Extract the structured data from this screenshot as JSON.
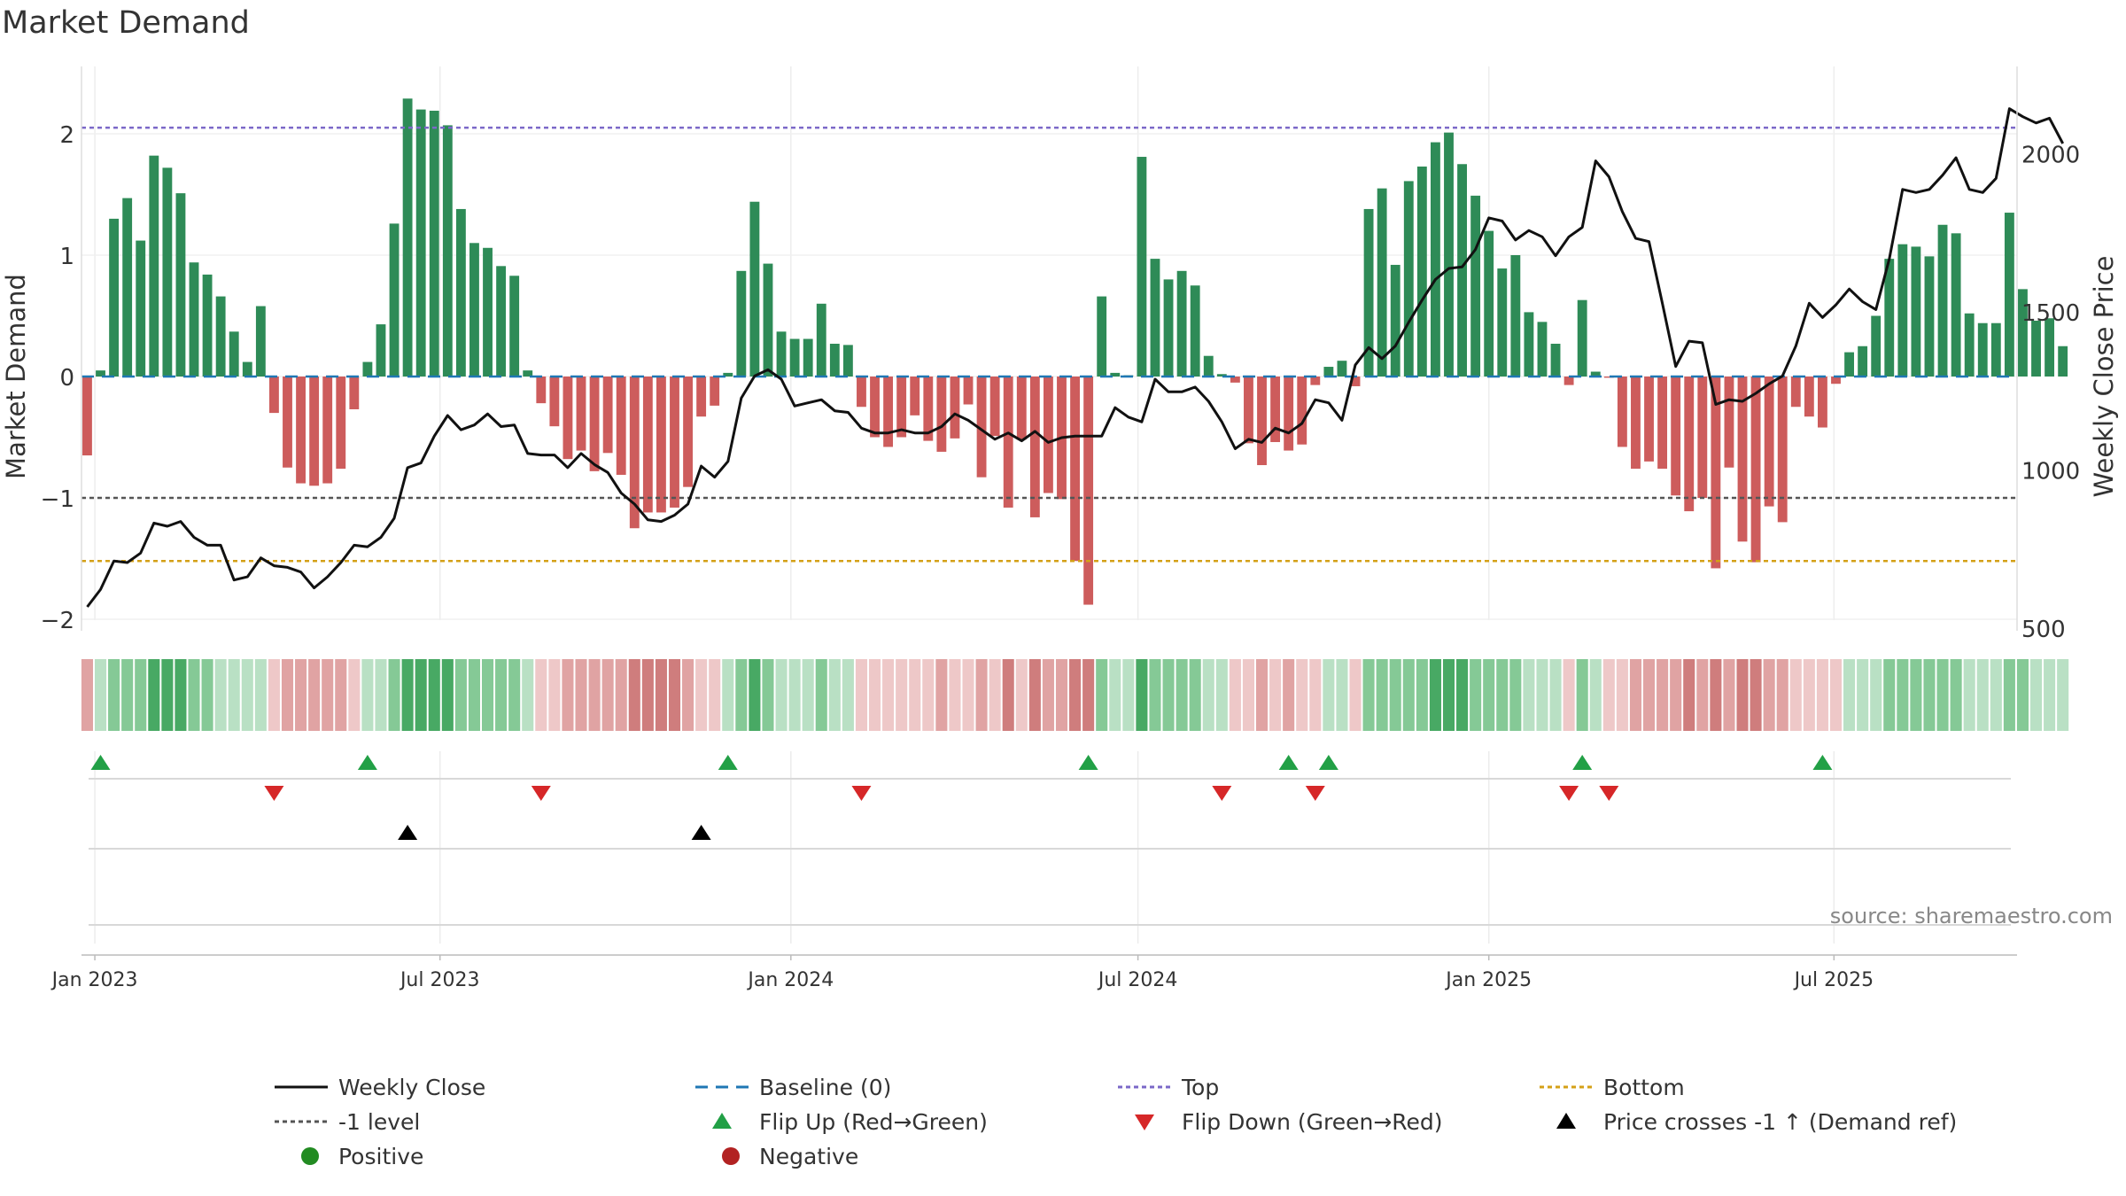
{
  "title": "Market Demand",
  "source": "source: sharemaestro.com",
  "colors": {
    "positive": "#2e8b57",
    "negative": "#cd5c5c",
    "price": "#111111",
    "baseline": "#1f77b4",
    "top": "#7b68c8",
    "minus1": "#555555",
    "bottom": "#d4a017",
    "flip_up": "#22a046",
    "flip_down": "#d62728",
    "price_cross": "#000000"
  },
  "chart_data": {
    "type": "bar",
    "x_start": "2022-12-25",
    "x_end": "2025-10-05",
    "x_ticks": [
      {
        "date": "2023-01-01",
        "label": "Jan 2023"
      },
      {
        "date": "2023-07-01",
        "label": "Jul 2023"
      },
      {
        "date": "2024-01-01",
        "label": "Jan 2024"
      },
      {
        "date": "2024-07-01",
        "label": "Jul 2024"
      },
      {
        "date": "2025-01-01",
        "label": "Jan 2025"
      },
      {
        "date": "2025-07-01",
        "label": "Jul 2025"
      }
    ],
    "ylabel": "Market Demand",
    "ylim": [
      -2.2,
      2.5
    ],
    "y_ticks": [
      {
        "v": 2,
        "label": "2"
      },
      {
        "v": 1,
        "label": "1"
      },
      {
        "v": 0,
        "label": "0"
      },
      {
        "v": -1,
        "label": "−1"
      },
      {
        "v": -2,
        "label": "−2"
      }
    ],
    "y2label": "Weekly Close Price",
    "y2lim": [
      500,
      2200
    ],
    "y2_ticks": [
      {
        "v": 500,
        "label": "500"
      },
      {
        "v": 1000,
        "label": "1000"
      },
      {
        "v": 1500,
        "label": "1500"
      },
      {
        "v": 2000,
        "label": "2000"
      }
    ],
    "reference_lines": {
      "top": 2.05,
      "minus1": -1.0,
      "bottom": -1.52,
      "baseline": 0
    },
    "demand": [
      -0.65,
      0.05,
      1.3,
      1.47,
      1.12,
      1.82,
      1.72,
      1.51,
      0.94,
      0.84,
      0.66,
      0.37,
      0.12,
      0.58,
      -0.3,
      -0.75,
      -0.88,
      -0.9,
      -0.88,
      -0.76,
      -0.27,
      0.12,
      0.43,
      1.26,
      2.29,
      2.2,
      2.19,
      2.07,
      1.38,
      1.1,
      1.06,
      0.91,
      0.83,
      0.05,
      -0.22,
      -0.41,
      -0.68,
      -0.61,
      -0.78,
      -0.63,
      -0.81,
      -1.25,
      -1.12,
      -1.12,
      -1.08,
      -0.91,
      -0.33,
      -0.24,
      0.03,
      0.87,
      1.44,
      0.93,
      0.37,
      0.31,
      0.31,
      0.6,
      0.27,
      0.26,
      -0.25,
      -0.5,
      -0.58,
      -0.5,
      -0.32,
      -0.53,
      -0.62,
      -0.51,
      -0.23,
      -0.83,
      -0.49,
      -1.08,
      -0.52,
      -1.16,
      -0.96,
      -1.01,
      -1.52,
      -1.88,
      0.66,
      0.03,
      0.01,
      1.81,
      0.97,
      0.8,
      0.87,
      0.75,
      0.17,
      0.02,
      -0.05,
      -0.55,
      -0.73,
      -0.54,
      -0.61,
      -0.56,
      -0.07,
      0.08,
      0.13,
      -0.08,
      1.38,
      1.55,
      0.92,
      1.61,
      1.73,
      1.93,
      2.01,
      1.75,
      1.49,
      1.2,
      0.89,
      1.0,
      0.53,
      0.45,
      0.27,
      -0.07,
      0.63,
      0.04,
      -0.01,
      -0.58,
      -0.76,
      -0.7,
      -0.76,
      -0.98,
      -1.11,
      -1.0,
      -1.58,
      -0.75,
      -1.36,
      -1.53,
      -1.07,
      -1.2,
      -0.25,
      -0.33,
      -0.42,
      -0.06,
      0.2,
      0.25,
      0.5,
      0.97,
      1.09,
      1.07,
      0.99,
      1.25,
      1.18,
      0.52,
      0.44,
      0.44,
      1.35,
      0.72,
      0.46,
      0.48,
      0.25
    ],
    "price": [
      570,
      625,
      715,
      710,
      740,
      835,
      825,
      840,
      790,
      765,
      765,
      655,
      665,
      725,
      700,
      695,
      680,
      630,
      665,
      710,
      765,
      760,
      790,
      850,
      1010,
      1025,
      1110,
      1175,
      1130,
      1145,
      1180,
      1140,
      1145,
      1055,
      1050,
      1050,
      1010,
      1055,
      1020,
      995,
      930,
      895,
      845,
      840,
      860,
      895,
      1015,
      980,
      1030,
      1230,
      1300,
      1320,
      1290,
      1205,
      1215,
      1225,
      1190,
      1185,
      1135,
      1120,
      1120,
      1130,
      1120,
      1120,
      1140,
      1180,
      1160,
      1130,
      1100,
      1120,
      1095,
      1125,
      1090,
      1105,
      1110,
      1110,
      1110,
      1200,
      1170,
      1155,
      1290,
      1250,
      1250,
      1265,
      1220,
      1155,
      1070,
      1100,
      1090,
      1135,
      1120,
      1150,
      1225,
      1215,
      1160,
      1335,
      1390,
      1355,
      1395,
      1470,
      1540,
      1605,
      1640,
      1645,
      1700,
      1800,
      1790,
      1730,
      1760,
      1740,
      1680,
      1740,
      1770,
      1980,
      1930,
      1820,
      1735,
      1725,
      1530,
      1330,
      1410,
      1405,
      1210,
      1225,
      1220,
      1245,
      1275,
      1300,
      1395,
      1530,
      1485,
      1525,
      1575,
      1535,
      1510,
      1670,
      1890,
      1880,
      1890,
      1935,
      1990,
      1890,
      1880,
      1925,
      2145,
      2120,
      2100,
      2115,
      2035
    ],
    "band_levels": [
      -2,
      1,
      2,
      2,
      2,
      3,
      3,
      3,
      2,
      2,
      1,
      1,
      1,
      1,
      -1,
      -2,
      -2,
      -2,
      -2,
      -2,
      -1,
      1,
      1,
      2,
      3,
      3,
      3,
      3,
      2,
      2,
      2,
      2,
      2,
      1,
      -1,
      -1,
      -2,
      -2,
      -2,
      -2,
      -2,
      -3,
      -3,
      -3,
      -3,
      -2,
      -1,
      -1,
      1,
      2,
      3,
      2,
      1,
      1,
      1,
      2,
      1,
      1,
      -1,
      -1,
      -1,
      -1,
      -1,
      -1,
      -2,
      -1,
      -1,
      -2,
      -1,
      -3,
      -1,
      -3,
      -2,
      -2,
      -3,
      -3,
      2,
      1,
      1,
      3,
      2,
      2,
      2,
      2,
      1,
      1,
      -1,
      -1,
      -2,
      -1,
      -2,
      -1,
      -1,
      1,
      1,
      -1,
      2,
      2,
      2,
      2,
      2,
      3,
      3,
      3,
      2,
      2,
      2,
      2,
      1,
      1,
      1,
      -1,
      2,
      1,
      -1,
      -1,
      -2,
      -2,
      -2,
      -2,
      -3,
      -2,
      -3,
      -2,
      -3,
      -3,
      -2,
      -2,
      -1,
      -1,
      -1,
      -1,
      1,
      1,
      1,
      2,
      2,
      2,
      2,
      2,
      2,
      1,
      1,
      1,
      2,
      2,
      1,
      1,
      1
    ],
    "flip_up_weeks": [
      1,
      21,
      48,
      75,
      90,
      93,
      112,
      130
    ],
    "flip_down_weeks": [
      14,
      34,
      58,
      85,
      92,
      111,
      114
    ],
    "price_cross_weeks": [
      24,
      46
    ],
    "legend": [
      {
        "label": "Weekly Close",
        "kind": "line"
      },
      {
        "label": "Baseline (0)",
        "kind": "dash"
      },
      {
        "label": "Top",
        "kind": "dot-top"
      },
      {
        "label": "Bottom",
        "kind": "dot-bottom"
      },
      {
        "label": "-1 level",
        "kind": "dot-minus1"
      },
      {
        "label": "Flip Up (Red→Green)",
        "kind": "tri-up"
      },
      {
        "label": "Flip Down (Green→Red)",
        "kind": "tri-down"
      },
      {
        "label": "Price crosses -1 ↑ (Demand ref)",
        "kind": "tri-cross"
      },
      {
        "label": "Positive",
        "kind": "dot-pos"
      },
      {
        "label": "Negative",
        "kind": "dot-neg"
      }
    ]
  }
}
